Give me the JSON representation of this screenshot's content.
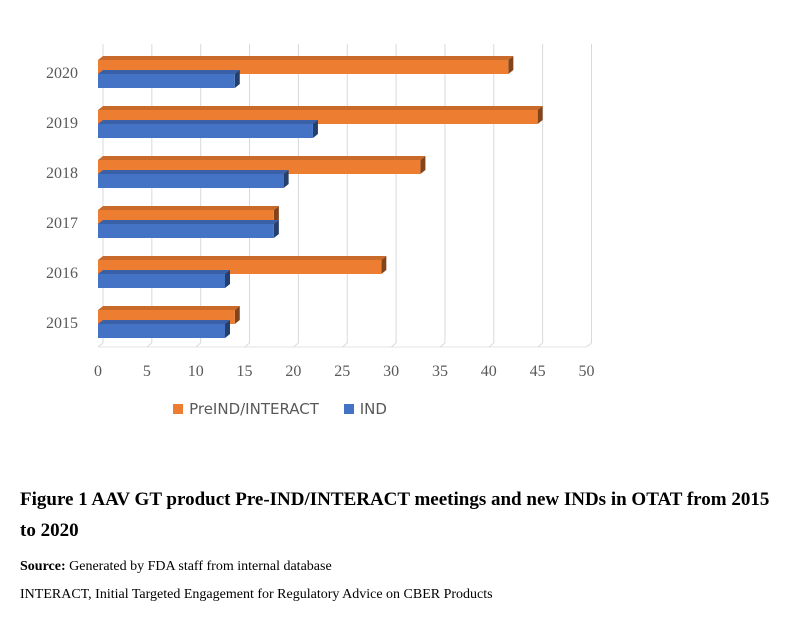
{
  "chart_data": {
    "type": "bar",
    "orientation": "horizontal",
    "categories": [
      "2015",
      "2016",
      "2017",
      "2018",
      "2019",
      "2020"
    ],
    "series": [
      {
        "name": "PreIND/INTERACT",
        "color": "#ED7D31",
        "values": [
          14,
          29,
          18,
          33,
          45,
          42
        ]
      },
      {
        "name": "IND",
        "color": "#4472C4",
        "values": [
          13,
          13,
          18,
          19,
          22,
          14
        ]
      }
    ],
    "xlim": [
      0,
      50
    ],
    "xticks": [
      "0",
      "5",
      "10",
      "15",
      "20",
      "25",
      "30",
      "35",
      "40",
      "45",
      "50"
    ],
    "grid": true,
    "legend_position": "bottom"
  },
  "caption": {
    "title": "Figure 1 AAV GT product Pre-IND/INTERACT meetings and new INDs in OTAT from 2015 to 2020",
    "source_label": "Source:",
    "source_text": " Generated by FDA staff from internal database",
    "abbreviation": "INTERACT, Initial Targeted Engagement for Regulatory Advice on CBER Products"
  }
}
